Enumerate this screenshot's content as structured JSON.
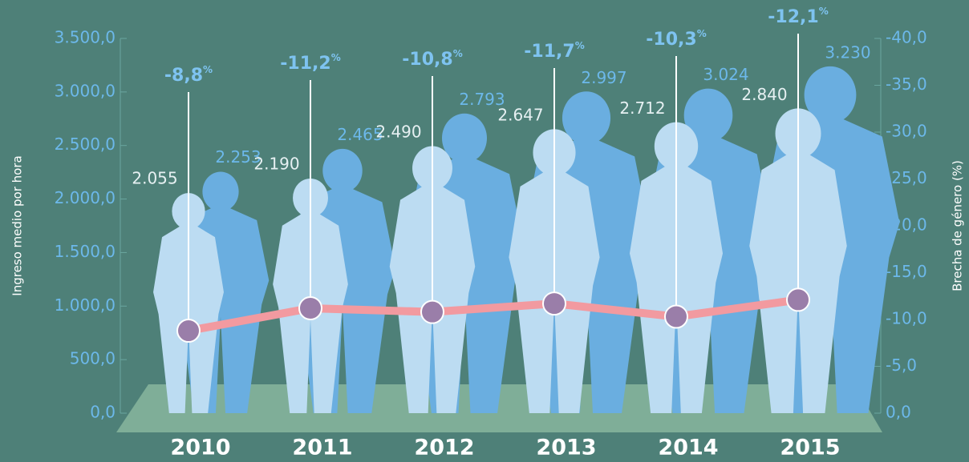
{
  "chart_data": {
    "type": "bar",
    "categories": [
      "2010",
      "2011",
      "2012",
      "2013",
      "2014",
      "2015"
    ],
    "series": [
      {
        "color": "#6aaee0",
        "values": [
          2253,
          2465,
          2793,
          2997,
          3024,
          3230
        ],
        "value_labels": [
          "2.253",
          "2.465",
          "2.793",
          "2.997",
          "3.024",
          "3.230"
        ]
      },
      {
        "color": "#bcdcf2",
        "values": [
          2055,
          2190,
          2490,
          2647,
          2712,
          2840
        ],
        "value_labels": [
          "2.055",
          "2.190",
          "2.490",
          "2.647",
          "2.712",
          "2.840"
        ]
      },
      {
        "type": "line",
        "axis": "y2",
        "color": "#f29aa0",
        "marker_color": "#9a7ea9",
        "values": [
          -8.8,
          -11.2,
          -10.8,
          -11.7,
          -10.3,
          -12.1
        ],
        "value_labels": [
          "-8,8",
          "-11,2",
          "-10,8",
          "-11,7",
          "-10,3",
          "-12,1"
        ],
        "value_label_unit": "%"
      }
    ],
    "y_label": "Ingreso medio por hora",
    "y2_label": "Brecha de género (%)",
    "ylim": [
      0,
      3500
    ],
    "yticks": [
      {
        "value": 0,
        "label": "0,0"
      },
      {
        "value": 500,
        "label": "500,0"
      },
      {
        "value": 1000,
        "label": "1.000,0"
      },
      {
        "value": 1500,
        "label": "1.500,0"
      },
      {
        "value": 2000,
        "label": "2.000,0"
      },
      {
        "value": 2500,
        "label": "2.500,0"
      },
      {
        "value": 3000,
        "label": "3.000,0"
      },
      {
        "value": 3500,
        "label": "3.500,0"
      }
    ],
    "y2lim": [
      0,
      -40
    ],
    "y2ticks": [
      {
        "value": 0,
        "label": "0,0"
      },
      {
        "value": -5,
        "label": "-5,0"
      },
      {
        "value": -10,
        "label": "-10,0"
      },
      {
        "value": -15,
        "label": "-15,0"
      },
      {
        "value": -20,
        "label": "-20,0"
      },
      {
        "value": -25,
        "label": "-25,0"
      },
      {
        "value": -30,
        "label": "-30,0"
      },
      {
        "value": -35,
        "label": "-35,0"
      },
      {
        "value": -40,
        "label": "-40,0"
      }
    ]
  }
}
